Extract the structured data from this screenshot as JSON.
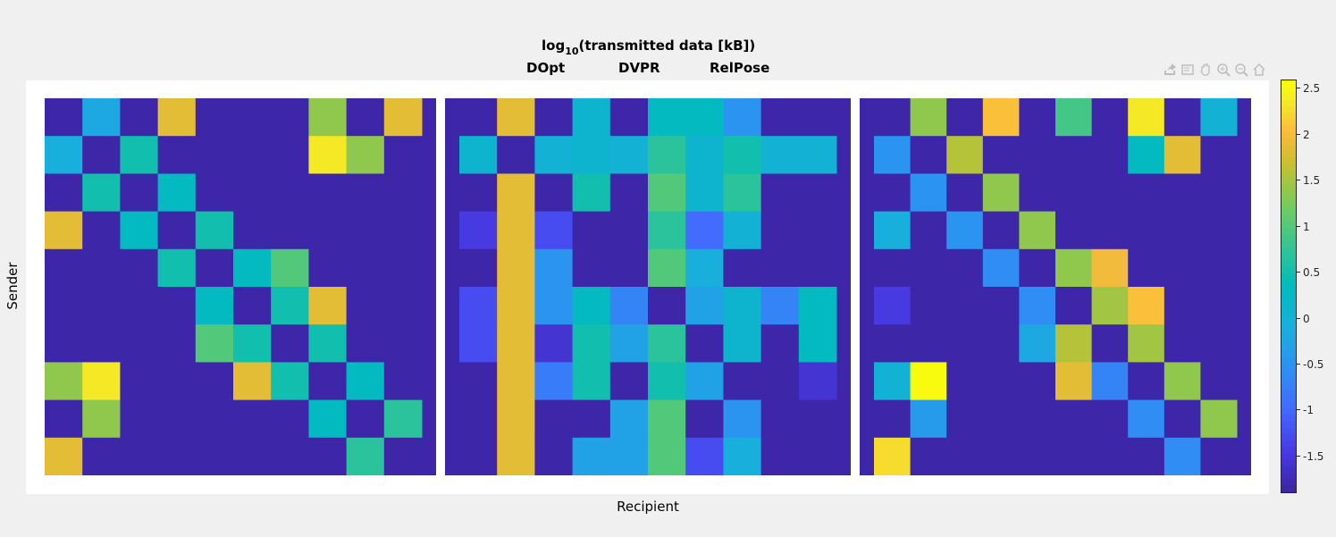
{
  "figure": {
    "title_main": "log",
    "title_sub": "10",
    "title_rest": "(transmitted data [kB])",
    "ylabel": "Sender",
    "xlabel": "Recipient"
  },
  "toolbar": [
    "export-icon",
    "brush-icon",
    "pan-icon",
    "zoom-in-icon",
    "zoom-out-icon",
    "home-icon"
  ],
  "colormap": "parula",
  "chart_data": [
    {
      "type": "heatmap",
      "title": "DOpt",
      "clim": [
        -1.9,
        2.6
      ],
      "values": [
        [
          -1.9,
          -0.2,
          -1.9,
          1.9,
          -1.9,
          -1.9,
          -1.9,
          1.4,
          -1.9,
          1.9
        ],
        [
          -0.1,
          -1.9,
          0.5,
          -1.9,
          -1.9,
          -1.9,
          -1.9,
          2.4,
          1.4,
          -1.9
        ],
        [
          -1.9,
          0.5,
          -1.9,
          0.3,
          -1.9,
          -1.9,
          -1.9,
          -1.9,
          -1.9,
          -1.9
        ],
        [
          1.9,
          -1.9,
          0.3,
          -1.9,
          0.5,
          -1.9,
          -1.9,
          -1.9,
          -1.9,
          -1.9
        ],
        [
          -1.9,
          -1.9,
          -1.9,
          0.5,
          -1.9,
          0.3,
          1.0,
          -1.9,
          -1.9,
          -1.9
        ],
        [
          -1.9,
          -1.9,
          -1.9,
          -1.9,
          0.3,
          -1.9,
          0.5,
          1.9,
          -1.9,
          -1.9
        ],
        [
          -1.9,
          -1.9,
          -1.9,
          -1.9,
          1.0,
          0.5,
          -1.9,
          0.5,
          -1.9,
          -1.9
        ],
        [
          1.4,
          2.4,
          -1.9,
          -1.9,
          -1.9,
          1.9,
          0.5,
          -1.9,
          0.3,
          -1.9
        ],
        [
          -1.9,
          1.4,
          -1.9,
          -1.9,
          -1.9,
          -1.9,
          -1.9,
          0.3,
          -1.9,
          0.7
        ],
        [
          1.9,
          -1.9,
          -1.9,
          -1.9,
          -1.9,
          -1.9,
          -1.9,
          -1.9,
          0.7,
          -1.9
        ]
      ]
    },
    {
      "type": "heatmap",
      "title": "DVPR",
      "clim": [
        -1.9,
        2.6
      ],
      "values": [
        [
          -1.9,
          1.9,
          -1.9,
          0.1,
          -1.9,
          0.3,
          0.3,
          -0.5,
          -1.9,
          -1.9
        ],
        [
          0.1,
          -1.9,
          0.0,
          0.1,
          0.0,
          0.7,
          0.1,
          0.5,
          0.0,
          0.0
        ],
        [
          -1.9,
          1.9,
          -1.9,
          0.5,
          -1.9,
          1.0,
          0.1,
          0.7,
          -1.9,
          -1.9
        ],
        [
          -1.5,
          1.9,
          -1.3,
          -1.9,
          -1.9,
          0.7,
          -1.0,
          0.0,
          -1.9,
          -1.9
        ],
        [
          -1.9,
          1.9,
          -0.5,
          -1.9,
          -1.9,
          1.0,
          -0.1,
          -1.9,
          -1.9,
          -1.9
        ],
        [
          -1.3,
          1.9,
          -0.5,
          0.3,
          -0.7,
          -1.9,
          -0.3,
          0.1,
          -0.7,
          0.3
        ],
        [
          -1.3,
          1.9,
          -1.6,
          0.5,
          -0.3,
          0.7,
          -1.9,
          0.1,
          -1.9,
          0.3
        ],
        [
          -1.9,
          1.9,
          -0.8,
          0.5,
          -1.9,
          0.5,
          -0.3,
          -1.9,
          -1.9,
          -1.6
        ],
        [
          -1.9,
          1.9,
          -1.9,
          -1.9,
          -0.3,
          1.0,
          -1.9,
          -0.5,
          -1.9,
          -1.9
        ],
        [
          -1.9,
          1.9,
          -1.9,
          -0.3,
          -0.3,
          1.0,
          -1.3,
          -0.1,
          -1.9,
          -1.9
        ]
      ]
    },
    {
      "type": "heatmap",
      "title": "RelPose",
      "clim": [
        -1.9,
        2.6
      ],
      "values": [
        [
          -1.9,
          1.4,
          -1.9,
          2.1,
          -1.9,
          0.9,
          -1.9,
          2.4,
          -1.9,
          0.0
        ],
        [
          -0.5,
          -1.9,
          1.6,
          -1.9,
          -1.9,
          -1.9,
          -1.9,
          0.3,
          1.9,
          -1.9
        ],
        [
          -1.9,
          -0.5,
          -1.9,
          1.4,
          -1.9,
          -1.9,
          -1.9,
          -1.9,
          -1.9,
          -1.9
        ],
        [
          -0.1,
          -1.9,
          -0.5,
          -1.9,
          1.4,
          -1.9,
          -1.9,
          -1.9,
          -1.9,
          -1.9
        ],
        [
          -1.9,
          -1.9,
          -1.9,
          -0.6,
          -1.9,
          1.4,
          2.0,
          -1.9,
          -1.9,
          -1.9
        ],
        [
          -1.5,
          -1.9,
          -1.9,
          -1.9,
          -0.6,
          -1.9,
          1.5,
          2.1,
          -1.9,
          -1.9
        ],
        [
          -1.9,
          -1.9,
          -1.9,
          -1.9,
          -0.2,
          1.6,
          -1.9,
          1.5,
          -1.9,
          -1.9
        ],
        [
          0.0,
          2.6,
          -1.9,
          -1.9,
          -1.9,
          1.9,
          -0.7,
          -1.9,
          1.4,
          -1.9
        ],
        [
          -1.9,
          -0.4,
          -1.9,
          -1.9,
          -1.9,
          -1.9,
          -1.9,
          -0.6,
          -1.9,
          1.4
        ],
        [
          2.3,
          -1.9,
          -1.9,
          -1.9,
          -1.9,
          -1.9,
          -1.9,
          -1.9,
          -0.6,
          -1.9
        ]
      ]
    }
  ],
  "colorbar": {
    "ticks": [
      "2.5",
      "2",
      "1.5",
      "1",
      "0.5",
      "0",
      "-0.5",
      "-1",
      "-1.5"
    ],
    "tick_values": [
      2.5,
      2,
      1.5,
      1,
      0.5,
      0,
      -0.5,
      -1,
      -1.5
    ]
  }
}
